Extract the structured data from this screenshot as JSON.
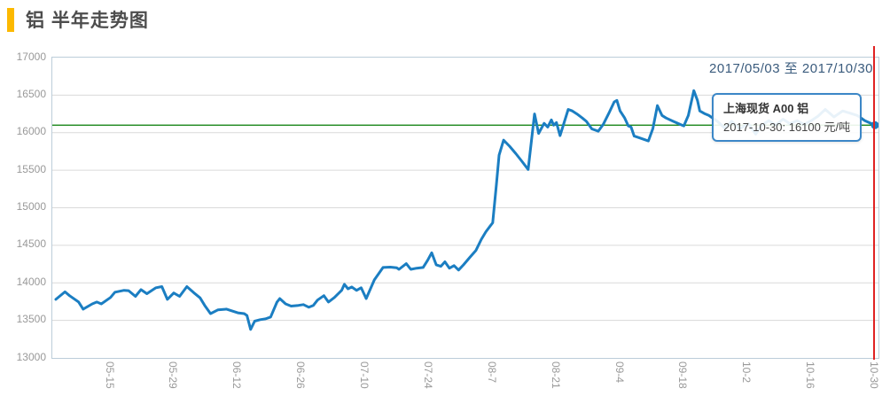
{
  "header": {
    "title": "铝 半年走势图",
    "accent_color": "#fcb900"
  },
  "chart": {
    "date_range": "2017/05/03 至 2017/10/30",
    "tooltip": {
      "title": "上海现货 A00 铝",
      "text": "2017-10-30: 16100 元/吨"
    },
    "colors": {
      "line": "#1b7ec2",
      "reference_line": "#007a00",
      "cursor_line": "#e02222",
      "grid": "#dadada",
      "plot_border": "#bccdd9",
      "axis_text": "#999999",
      "date_range_text": "#3a5b7d",
      "accent": "#fcb900"
    }
  },
  "chart_data": {
    "type": "line",
    "title": "铝 半年走势图",
    "xlabel": "",
    "ylabel": "元/吨",
    "unit": "元/吨",
    "ylim": [
      13000,
      17000
    ],
    "x_start_date": "2017-05-03",
    "x_end_date": "2017-10-30",
    "x_total_days": 180,
    "grid": "horizontal-only",
    "legend_position": "tooltip-box",
    "y_ticks": [
      17000,
      16500,
      16000,
      15500,
      15000,
      14500,
      14000,
      13500,
      13000
    ],
    "x_ticks": [
      {
        "label": "05-15",
        "day": 12
      },
      {
        "label": "05-29",
        "day": 26
      },
      {
        "label": "06-12",
        "day": 40
      },
      {
        "label": "06-26",
        "day": 54
      },
      {
        "label": "07-10",
        "day": 68
      },
      {
        "label": "07-24",
        "day": 82
      },
      {
        "label": "08-7",
        "day": 96
      },
      {
        "label": "08-21",
        "day": 110
      },
      {
        "label": "09-4",
        "day": 124
      },
      {
        "label": "09-18",
        "day": 138
      },
      {
        "label": "10-2",
        "day": 152
      },
      {
        "label": "10-16",
        "day": 166
      },
      {
        "label": "10-30",
        "day": 180
      }
    ],
    "reference_line_value": 16100,
    "last_point": {
      "date": "2017-10-30",
      "value": 16100
    },
    "series": [
      {
        "name": "上海现货 A00 铝",
        "points": [
          [
            0,
            13780
          ],
          [
            2,
            13880
          ],
          [
            3,
            13830
          ],
          [
            5,
            13745
          ],
          [
            6,
            13650
          ],
          [
            8,
            13720
          ],
          [
            9,
            13745
          ],
          [
            10,
            13720
          ],
          [
            12,
            13805
          ],
          [
            13,
            13875
          ],
          [
            15,
            13900
          ],
          [
            16,
            13895
          ],
          [
            17.5,
            13820
          ],
          [
            18.7,
            13910
          ],
          [
            20,
            13855
          ],
          [
            22,
            13935
          ],
          [
            23.3,
            13950
          ],
          [
            24.5,
            13780
          ],
          [
            25.9,
            13865
          ],
          [
            27.2,
            13820
          ],
          [
            28.8,
            13950
          ],
          [
            30.3,
            13870
          ],
          [
            31.7,
            13800
          ],
          [
            32.7,
            13700
          ],
          [
            34,
            13590
          ],
          [
            35.6,
            13640
          ],
          [
            37.5,
            13650
          ],
          [
            40,
            13600
          ],
          [
            41.4,
            13590
          ],
          [
            42,
            13565
          ],
          [
            42.8,
            13380
          ],
          [
            43.7,
            13490
          ],
          [
            44.9,
            13510
          ],
          [
            46.1,
            13520
          ],
          [
            47.2,
            13545
          ],
          [
            48.6,
            13745
          ],
          [
            49.2,
            13790
          ],
          [
            50.5,
            13720
          ],
          [
            51.7,
            13690
          ],
          [
            53.3,
            13700
          ],
          [
            54.4,
            13710
          ],
          [
            55.6,
            13675
          ],
          [
            56.6,
            13700
          ],
          [
            57.5,
            13770
          ],
          [
            58.9,
            13830
          ],
          [
            59.9,
            13745
          ],
          [
            61.2,
            13805
          ],
          [
            62.8,
            13900
          ],
          [
            63.4,
            13980
          ],
          [
            64.2,
            13920
          ],
          [
            65,
            13945
          ],
          [
            66.1,
            13900
          ],
          [
            67.1,
            13935
          ],
          [
            68.2,
            13790
          ],
          [
            70,
            14040
          ],
          [
            71.9,
            14205
          ],
          [
            73.5,
            14210
          ],
          [
            74.9,
            14200
          ],
          [
            75.4,
            14180
          ],
          [
            77,
            14255
          ],
          [
            78,
            14180
          ],
          [
            79.3,
            14195
          ],
          [
            80.7,
            14205
          ],
          [
            81.7,
            14300
          ],
          [
            82.6,
            14400
          ],
          [
            83.6,
            14240
          ],
          [
            84.6,
            14220
          ],
          [
            85.5,
            14280
          ],
          [
            86.5,
            14195
          ],
          [
            87.5,
            14230
          ],
          [
            88.5,
            14170
          ],
          [
            89.6,
            14240
          ],
          [
            91,
            14340
          ],
          [
            92.3,
            14430
          ],
          [
            93.5,
            14580
          ],
          [
            94.5,
            14680
          ],
          [
            95.5,
            14760
          ],
          [
            96,
            14800
          ],
          [
            96.8,
            15300
          ],
          [
            97.4,
            15700
          ],
          [
            98.4,
            15900
          ],
          [
            99.7,
            15820
          ],
          [
            101.1,
            15720
          ],
          [
            102.4,
            15620
          ],
          [
            103.8,
            15510
          ],
          [
            105.2,
            16250
          ],
          [
            106.1,
            15990
          ],
          [
            107.3,
            16125
          ],
          [
            108.1,
            16075
          ],
          [
            108.9,
            16170
          ],
          [
            109.4,
            16100
          ],
          [
            110,
            16135
          ],
          [
            110.8,
            15960
          ],
          [
            112.6,
            16310
          ],
          [
            113.5,
            16290
          ],
          [
            114.5,
            16250
          ],
          [
            115.7,
            16195
          ],
          [
            116.6,
            16150
          ],
          [
            117.8,
            16050
          ],
          [
            119.2,
            16020
          ],
          [
            120.3,
            16110
          ],
          [
            121.5,
            16255
          ],
          [
            122.7,
            16410
          ],
          [
            123.3,
            16430
          ],
          [
            124,
            16290
          ],
          [
            125,
            16195
          ],
          [
            125.8,
            16090
          ],
          [
            126.4,
            16075
          ],
          [
            127.1,
            15955
          ],
          [
            128.1,
            15935
          ],
          [
            129.3,
            15910
          ],
          [
            130.2,
            15890
          ],
          [
            131.2,
            16055
          ],
          [
            132.2,
            16360
          ],
          [
            133.2,
            16230
          ],
          [
            134.1,
            16195
          ],
          [
            135.7,
            16150
          ],
          [
            137.2,
            16110
          ],
          [
            138,
            16090
          ],
          [
            139,
            16230
          ],
          [
            140.2,
            16560
          ],
          [
            141,
            16430
          ],
          [
            141.5,
            16290
          ],
          [
            142.5,
            16255
          ],
          [
            143.5,
            16230
          ],
          [
            145.4,
            16150
          ],
          [
            147,
            16060
          ],
          [
            148.5,
            16150
          ],
          [
            150.3,
            16050
          ],
          [
            152.2,
            16120
          ],
          [
            153.8,
            15980
          ],
          [
            155.1,
            16100
          ],
          [
            156.7,
            16160
          ],
          [
            158.2,
            16100
          ],
          [
            159.8,
            16180
          ],
          [
            161.3,
            16120
          ],
          [
            162.9,
            16160
          ],
          [
            164.4,
            16110
          ],
          [
            166,
            16160
          ],
          [
            167.5,
            16220
          ],
          [
            169.1,
            16310
          ],
          [
            171,
            16210
          ],
          [
            172.9,
            16290
          ],
          [
            174.5,
            16260
          ],
          [
            176.1,
            16230
          ],
          [
            177.8,
            16160
          ],
          [
            180,
            16100
          ]
        ]
      }
    ]
  }
}
